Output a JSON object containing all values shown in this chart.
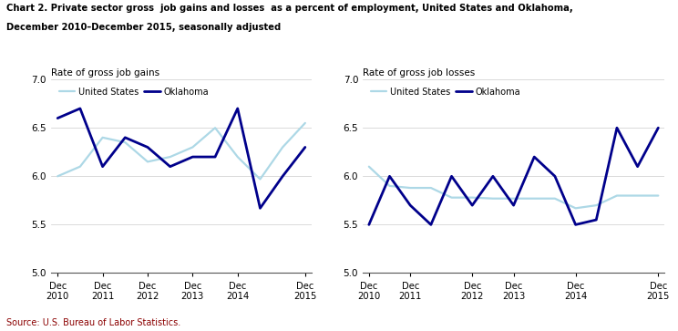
{
  "title_line1": "Chart 2. Private sector gross  job gains and losses  as a percent of employment, United States and Oklahoma,",
  "title_line2": "December 2010–December 2015, seasonally adjusted",
  "source": "Source: U.S. Bureau of Labor Statistics.",
  "left_ylabel": "Rate of gross job gains",
  "right_ylabel": "Rate of gross job losses",
  "x_labels": [
    "Dec\n2010",
    "Dec\n2011",
    "Dec\n2012",
    "Dec\n2013",
    "Dec\n2014",
    "Dec\n2015"
  ],
  "ylim": [
    5.0,
    7.0
  ],
  "yticks": [
    5.0,
    5.5,
    6.0,
    6.5,
    7.0
  ],
  "us_color": "#ADD8E6",
  "ok_color": "#00008B",
  "us_linewidth": 1.6,
  "ok_linewidth": 2.0,
  "legend_us": "United States",
  "legend_ok": "Oklahoma",
  "gains_us_y": [
    6.0,
    6.1,
    6.4,
    6.35,
    6.15,
    6.2,
    6.3,
    6.5,
    6.2,
    5.97,
    6.3,
    6.55
  ],
  "gains_ok_y": [
    6.6,
    6.7,
    6.1,
    6.4,
    6.3,
    6.1,
    6.2,
    6.2,
    6.7,
    5.67,
    6.0,
    6.3
  ],
  "gains_xtick_idx": [
    0,
    2,
    4,
    6,
    8,
    11
  ],
  "losses_us_y": [
    6.1,
    5.9,
    5.88,
    5.88,
    5.78,
    5.78,
    5.77,
    5.77,
    5.77,
    5.77,
    5.67,
    5.7,
    5.8,
    5.8,
    5.8
  ],
  "losses_ok_y": [
    5.5,
    6.0,
    5.7,
    5.5,
    6.0,
    5.7,
    6.0,
    5.7,
    6.2,
    6.0,
    5.5,
    5.55,
    6.5,
    6.1,
    6.5
  ],
  "losses_xtick_idx": [
    0,
    2,
    5,
    7,
    10,
    14
  ]
}
